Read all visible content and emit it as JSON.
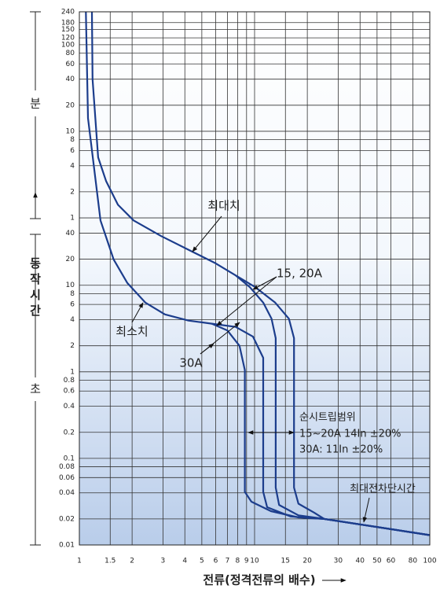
{
  "chart_data": {
    "type": "line",
    "xscale": "log",
    "yscale": "log",
    "xlim": [
      1,
      100
    ],
    "xticks": [
      1,
      1.5,
      2,
      3,
      4,
      5,
      6,
      7,
      8,
      9,
      10,
      15,
      20,
      30,
      40,
      50,
      60,
      80,
      100
    ],
    "ylim": [
      0.01,
      14400
    ],
    "yticks": [
      {
        "value": 14400,
        "label": "240"
      },
      {
        "value": 10800,
        "label": "180"
      },
      {
        "value": 9000,
        "label": "150"
      },
      {
        "value": 7200,
        "label": "120"
      },
      {
        "value": 6000,
        "label": "100"
      },
      {
        "value": 4800,
        "label": "80"
      },
      {
        "value": 3600,
        "label": "60"
      },
      {
        "value": 2400,
        "label": "40"
      },
      {
        "value": 1200,
        "label": "20"
      },
      {
        "value": 600,
        "label": "10"
      },
      {
        "value": 480,
        "label": "8"
      },
      {
        "value": 360,
        "label": "6"
      },
      {
        "value": 240,
        "label": "4"
      },
      {
        "value": 120,
        "label": "2"
      },
      {
        "value": 60,
        "label": "1"
      },
      40,
      20,
      10,
      8,
      6,
      4,
      2,
      1,
      0.8,
      0.6,
      0.4,
      0.2,
      0.1,
      0.08,
      0.06,
      0.04,
      0.02,
      0.01
    ],
    "grid": true,
    "xlabel": "전류(정격전류의 배수)",
    "ylabel": "동작시간",
    "y_unit_labels": [
      "분",
      "초"
    ],
    "annotations": [
      "최대치",
      "15, 20A",
      "최소치",
      "30A",
      "순시트립범위",
      "15~20A 14In ±20%",
      "30A: 11In ±20%",
      "최대전차단시간"
    ],
    "series": [
      {
        "color": "#1c3d8c",
        "x": [
          1.18,
          1.19,
          1.28,
          1.42,
          1.66,
          2.04,
          2.93,
          4.42,
          6.0,
          7.8,
          10.1,
          13.1,
          15.7,
          16.8,
          16.8,
          17.8,
          21.9,
          25,
          100
        ],
        "values": [
          14400,
          2400,
          300,
          160,
          85,
          56,
          37,
          24.4,
          17.9,
          13,
          9.5,
          6.3,
          4.1,
          2.45,
          0.046,
          0.03,
          0.0236,
          0.02,
          0.013
        ]
      },
      {
        "color": "#1c3d8c",
        "x": [
          7.8,
          9.4,
          11.2,
          12.5,
          13.2,
          13.2,
          13.8,
          17.8,
          25,
          100
        ],
        "values": [
          13,
          9.5,
          6.3,
          4.1,
          2.45,
          0.046,
          0.029,
          0.022,
          0.02,
          0.013
        ]
      },
      {
        "color": "#1c3d8c",
        "x": [
          1.09,
          1.12,
          1.32,
          1.57,
          1.88,
          2.38,
          3.08,
          4.2,
          5.7,
          7.8,
          9.8,
          11.2,
          11.2,
          11.8,
          16.1,
          25,
          100
        ],
        "values": [
          14400,
          850,
          56,
          19.8,
          10.6,
          6.3,
          4.6,
          3.9,
          3.6,
          3.3,
          2.55,
          1.45,
          0.041,
          0.0273,
          0.0213,
          0.02,
          0.013
        ]
      },
      {
        "color": "#1c3d8c",
        "x": [
          5.7,
          7.0,
          8.2,
          8.8,
          8.8,
          9.6,
          12.4,
          17.8,
          25,
          100
        ],
        "values": [
          3.6,
          3.0,
          2.0,
          1.05,
          0.041,
          0.0316,
          0.0246,
          0.0208,
          0.02,
          0.013
        ]
      }
    ]
  }
}
